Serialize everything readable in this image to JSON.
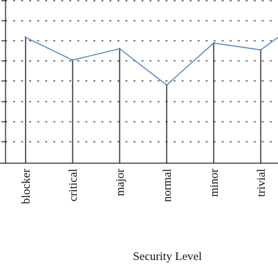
{
  "chart_data": {
    "type": "line",
    "title": "",
    "xlabel": "Security Level",
    "ylabel": "",
    "categories": [
      "blocker",
      "critical",
      "major",
      "normal",
      "minor",
      "trivial"
    ],
    "series": [
      {
        "values": [
          5.55,
          4.55,
          5.05,
          3.45,
          5.3,
          5.0
        ]
      }
    ],
    "trailing_point": 5.55,
    "ylim": [
      0,
      7.2
    ],
    "grid": true,
    "grid_style": "dotted",
    "legend": "none",
    "colors": {
      "line": "#4a7ec0",
      "axis": "#111111",
      "grid": "#444444",
      "drop_lines": "#111111"
    }
  }
}
